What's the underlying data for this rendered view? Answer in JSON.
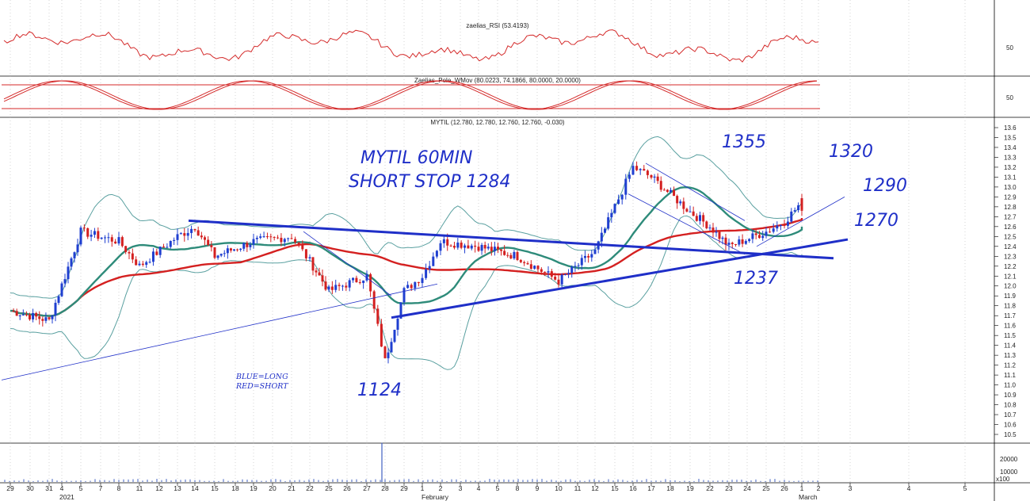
{
  "chart_data": {
    "type": "line",
    "colors": {
      "rsi_line": "#d42a2a",
      "stoch_line": "#d42a2a",
      "candle_up": "#1f3fd0",
      "candle_down": "#d42020",
      "ma_fast": "#2e8b7a",
      "ma_slow": "#d42020",
      "bollinger": "#5aa0a0",
      "trendline": "#1f2fc8",
      "annotation": "#1f2fc8"
    },
    "panels": [
      {
        "title": "zaelias_RSI (53.4193)",
        "ticks": [
          "50"
        ]
      },
      {
        "title": "Zaelias_Pele_WMov (80.0223, 74.1866, 80.0000, 20.0000)",
        "ticks": [
          "50"
        ]
      },
      {
        "title": "MYTIL (12.780, 12.780, 12.760, 12.760, -0.030)",
        "ylim": [
          10.5,
          13.6
        ],
        "ticks": [
          "13.6",
          "13.5",
          "13.4",
          "13.3",
          "13.2",
          "13.1",
          "13.0",
          "12.9",
          "12.8",
          "12.7",
          "12.6",
          "12.5",
          "12.4",
          "12.3",
          "12.2",
          "12.1",
          "12.0",
          "11.9",
          "11.8",
          "11.7",
          "11.6",
          "11.5",
          "11.4",
          "11.3",
          "11.2",
          "11.1",
          "11.0",
          "10.9",
          "10.8",
          "10.7",
          "10.6",
          "10.5"
        ]
      },
      {
        "title": "",
        "ticks": [
          "20000",
          "10000"
        ],
        "multiplier": "x100"
      }
    ],
    "x_dates": [
      "29",
      "30",
      "31",
      "4",
      "5",
      "7",
      "8",
      "11",
      "12",
      "13",
      "14",
      "15",
      "18",
      "19",
      "20",
      "21",
      "22",
      "25",
      "26",
      "27",
      "28",
      "29",
      "1",
      "2",
      "3",
      "4",
      "5",
      "8",
      "9",
      "10",
      "11",
      "12",
      "15",
      "16",
      "17",
      "18",
      "19",
      "22",
      "23",
      "24",
      "25",
      "26",
      "1",
      "2",
      "3",
      "4",
      "5"
    ],
    "x_months": [
      "2021",
      "February",
      "March"
    ],
    "price_key_points": [
      {
        "date": "29",
        "close": 11.75
      },
      {
        "date": "31",
        "close": 11.65
      },
      {
        "date": "5",
        "close": 12.55
      },
      {
        "date": "8",
        "close": 12.45
      },
      {
        "date": "11",
        "close": 12.2
      },
      {
        "date": "13",
        "close": 12.5
      },
      {
        "date": "14",
        "close": 12.6
      },
      {
        "date": "15",
        "close": 12.3
      },
      {
        "date": "19",
        "close": 12.45
      },
      {
        "date": "21",
        "close": 12.5
      },
      {
        "date": "22",
        "close": 12.25
      },
      {
        "date": "25",
        "close": 11.95
      },
      {
        "date": "27",
        "close": 12.1
      },
      {
        "date": "28",
        "close": 11.24
      },
      {
        "date": "29",
        "close": 11.95
      },
      {
        "date": "1",
        "close": 12.1
      },
      {
        "date": "2",
        "close": 12.45
      },
      {
        "date": "4",
        "close": 12.4
      },
      {
        "date": "8",
        "close": 12.3
      },
      {
        "date": "10",
        "close": 12.05
      },
      {
        "date": "12",
        "close": 12.35
      },
      {
        "date": "15",
        "close": 12.8
      },
      {
        "date": "16",
        "close": 13.2
      },
      {
        "date": "17",
        "close": 13.1
      },
      {
        "date": "19",
        "close": 12.75
      },
      {
        "date": "22",
        "close": 12.6
      },
      {
        "date": "23",
        "close": 12.4
      },
      {
        "date": "25",
        "close": 12.55
      },
      {
        "date": "26",
        "close": 12.65
      },
      {
        "date": "1",
        "close": 12.85
      },
      {
        "date": "2",
        "close": 12.76
      }
    ],
    "volume_spike": {
      "date": "28",
      "value": 26000
    },
    "annotations": [
      {
        "text": "MYTIL 60MIN"
      },
      {
        "text": "SHORT STOP 1284"
      },
      {
        "text": "1355"
      },
      {
        "text": "1320"
      },
      {
        "text": "1290"
      },
      {
        "text": "1270"
      },
      {
        "text": "1237"
      },
      {
        "text": "1124"
      },
      {
        "text": "BLUE=LONG"
      },
      {
        "text": "RED=SHORT"
      }
    ]
  }
}
